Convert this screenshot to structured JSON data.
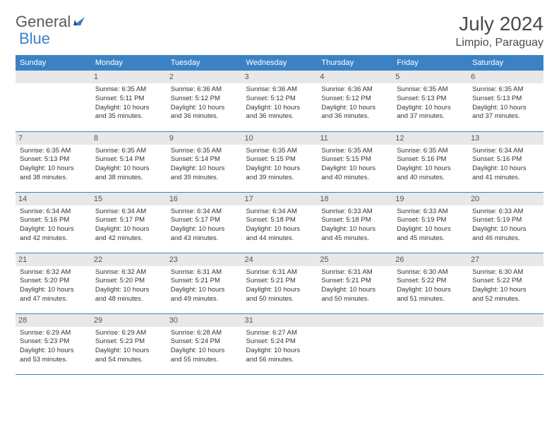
{
  "brand": {
    "part1": "General",
    "part2": "Blue"
  },
  "title": "July 2024",
  "location": "Limpio, Paraguay",
  "colors": {
    "accent": "#3b82c4",
    "daynum_bg": "#e8e8e8",
    "text": "#333333",
    "header_text": "#4a4a4a"
  },
  "day_headers": [
    "Sunday",
    "Monday",
    "Tuesday",
    "Wednesday",
    "Thursday",
    "Friday",
    "Saturday"
  ],
  "weeks": [
    [
      {
        "blank": true
      },
      {
        "n": "1",
        "sr": "6:35 AM",
        "ss": "5:11 PM",
        "dl": "10 hours and 35 minutes."
      },
      {
        "n": "2",
        "sr": "6:36 AM",
        "ss": "5:12 PM",
        "dl": "10 hours and 36 minutes."
      },
      {
        "n": "3",
        "sr": "6:36 AM",
        "ss": "5:12 PM",
        "dl": "10 hours and 36 minutes."
      },
      {
        "n": "4",
        "sr": "6:36 AM",
        "ss": "5:12 PM",
        "dl": "10 hours and 36 minutes."
      },
      {
        "n": "5",
        "sr": "6:35 AM",
        "ss": "5:13 PM",
        "dl": "10 hours and 37 minutes."
      },
      {
        "n": "6",
        "sr": "6:35 AM",
        "ss": "5:13 PM",
        "dl": "10 hours and 37 minutes."
      }
    ],
    [
      {
        "n": "7",
        "sr": "6:35 AM",
        "ss": "5:13 PM",
        "dl": "10 hours and 38 minutes."
      },
      {
        "n": "8",
        "sr": "6:35 AM",
        "ss": "5:14 PM",
        "dl": "10 hours and 38 minutes."
      },
      {
        "n": "9",
        "sr": "6:35 AM",
        "ss": "5:14 PM",
        "dl": "10 hours and 39 minutes."
      },
      {
        "n": "10",
        "sr": "6:35 AM",
        "ss": "5:15 PM",
        "dl": "10 hours and 39 minutes."
      },
      {
        "n": "11",
        "sr": "6:35 AM",
        "ss": "5:15 PM",
        "dl": "10 hours and 40 minutes."
      },
      {
        "n": "12",
        "sr": "6:35 AM",
        "ss": "5:16 PM",
        "dl": "10 hours and 40 minutes."
      },
      {
        "n": "13",
        "sr": "6:34 AM",
        "ss": "5:16 PM",
        "dl": "10 hours and 41 minutes."
      }
    ],
    [
      {
        "n": "14",
        "sr": "6:34 AM",
        "ss": "5:16 PM",
        "dl": "10 hours and 42 minutes."
      },
      {
        "n": "15",
        "sr": "6:34 AM",
        "ss": "5:17 PM",
        "dl": "10 hours and 42 minutes."
      },
      {
        "n": "16",
        "sr": "6:34 AM",
        "ss": "5:17 PM",
        "dl": "10 hours and 43 minutes."
      },
      {
        "n": "17",
        "sr": "6:34 AM",
        "ss": "5:18 PM",
        "dl": "10 hours and 44 minutes."
      },
      {
        "n": "18",
        "sr": "6:33 AM",
        "ss": "5:18 PM",
        "dl": "10 hours and 45 minutes."
      },
      {
        "n": "19",
        "sr": "6:33 AM",
        "ss": "5:19 PM",
        "dl": "10 hours and 45 minutes."
      },
      {
        "n": "20",
        "sr": "6:33 AM",
        "ss": "5:19 PM",
        "dl": "10 hours and 46 minutes."
      }
    ],
    [
      {
        "n": "21",
        "sr": "6:32 AM",
        "ss": "5:20 PM",
        "dl": "10 hours and 47 minutes."
      },
      {
        "n": "22",
        "sr": "6:32 AM",
        "ss": "5:20 PM",
        "dl": "10 hours and 48 minutes."
      },
      {
        "n": "23",
        "sr": "6:31 AM",
        "ss": "5:21 PM",
        "dl": "10 hours and 49 minutes."
      },
      {
        "n": "24",
        "sr": "6:31 AM",
        "ss": "5:21 PM",
        "dl": "10 hours and 50 minutes."
      },
      {
        "n": "25",
        "sr": "6:31 AM",
        "ss": "5:21 PM",
        "dl": "10 hours and 50 minutes."
      },
      {
        "n": "26",
        "sr": "6:30 AM",
        "ss": "5:22 PM",
        "dl": "10 hours and 51 minutes."
      },
      {
        "n": "27",
        "sr": "6:30 AM",
        "ss": "5:22 PM",
        "dl": "10 hours and 52 minutes."
      }
    ],
    [
      {
        "n": "28",
        "sr": "6:29 AM",
        "ss": "5:23 PM",
        "dl": "10 hours and 53 minutes."
      },
      {
        "n": "29",
        "sr": "6:29 AM",
        "ss": "5:23 PM",
        "dl": "10 hours and 54 minutes."
      },
      {
        "n": "30",
        "sr": "6:28 AM",
        "ss": "5:24 PM",
        "dl": "10 hours and 55 minutes."
      },
      {
        "n": "31",
        "sr": "6:27 AM",
        "ss": "5:24 PM",
        "dl": "10 hours and 56 minutes."
      },
      {
        "blank": true
      },
      {
        "blank": true
      },
      {
        "blank": true
      }
    ]
  ],
  "labels": {
    "sunrise": "Sunrise:",
    "sunset": "Sunset:",
    "daylight": "Daylight:"
  }
}
